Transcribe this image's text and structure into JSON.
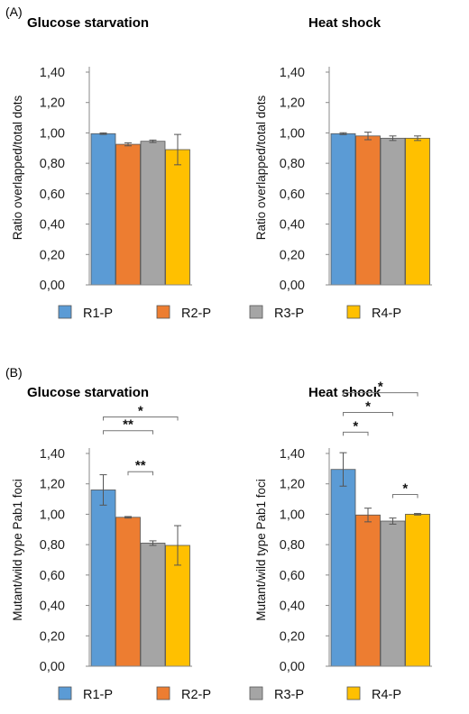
{
  "panel_labels": [
    "(A)",
    "(B)"
  ],
  "legend": {
    "items": [
      {
        "label": "R1-P",
        "color": "#5B9BD5"
      },
      {
        "label": "R2-P",
        "color": "#ED7D31"
      },
      {
        "label": "R3-P",
        "color": "#A5A5A5"
      },
      {
        "label": "R4-P",
        "color": "#FFC000"
      }
    ]
  },
  "colors": {
    "R1-P": "#5B9BD5",
    "R2-P": "#ED7D31",
    "R3-P": "#A5A5A5",
    "R4-P": "#FFC000"
  },
  "chart_data": [
    {
      "type": "bar",
      "panel": "(A)",
      "title": "Glucose starvation",
      "ylabel": "Ratio overlapped/total dots",
      "ylim": [
        0,
        1.4
      ],
      "yticks": [
        "0,00",
        "0,20",
        "0,40",
        "0,60",
        "0,80",
        "1,00",
        "1,20",
        "1,40"
      ],
      "categories": [
        "R1-P",
        "R2-P",
        "R3-P",
        "R4-P"
      ],
      "values": [
        0.995,
        0.925,
        0.945,
        0.89
      ],
      "errors": [
        0.005,
        0.01,
        0.008,
        0.1
      ],
      "significance": []
    },
    {
      "type": "bar",
      "panel": "(A)",
      "title": "Heat shock",
      "ylabel": "Ratio overlapped/total dots",
      "ylim": [
        0,
        1.4
      ],
      "yticks": [
        "0,00",
        "0,20",
        "0,40",
        "0,60",
        "0,80",
        "1,00",
        "1,20",
        "1,40"
      ],
      "categories": [
        "R1-P",
        "R2-P",
        "R3-P",
        "R4-P"
      ],
      "values": [
        0.995,
        0.98,
        0.965,
        0.965
      ],
      "errors": [
        0.006,
        0.025,
        0.015,
        0.015
      ],
      "significance": []
    },
    {
      "type": "bar",
      "panel": "(B)",
      "title": "Glucose starvation",
      "ylabel": "Mutant/wild type Pab1 foci",
      "ylim": [
        0,
        1.4
      ],
      "yticks": [
        "0,00",
        "0,20",
        "0,40",
        "0,60",
        "0,80",
        "1,00",
        "1,20",
        "1,40"
      ],
      "categories": [
        "R1-P",
        "R2-P",
        "R3-P",
        "R4-P"
      ],
      "values": [
        1.16,
        0.98,
        0.81,
        0.795
      ],
      "errors": [
        0.1,
        0.005,
        0.015,
        0.13
      ],
      "significance": [
        {
          "from": 0,
          "to": 3,
          "label": "*",
          "level": 1.64
        },
        {
          "from": 0,
          "to": 2,
          "label": "**",
          "level": 1.55
        },
        {
          "from": 1,
          "to": 2,
          "label": "**",
          "level": 1.28
        }
      ]
    },
    {
      "type": "bar",
      "panel": "(B)",
      "title": "Heat shock",
      "ylabel": "Mutant/wild type Pab1 foci",
      "ylim": [
        0,
        1.4
      ],
      "yticks": [
        "0,00",
        "0,20",
        "0,40",
        "0,60",
        "0,80",
        "1,00",
        "1,20",
        "1,40"
      ],
      "categories": [
        "R1-P",
        "R2-P",
        "R3-P",
        "R4-P"
      ],
      "values": [
        1.295,
        0.995,
        0.955,
        1.0
      ],
      "errors": [
        0.11,
        0.045,
        0.02,
        0.005
      ],
      "significance": [
        {
          "from": 0,
          "to": 3,
          "label": "*",
          "level": 1.8
        },
        {
          "from": 0,
          "to": 2,
          "label": "*",
          "level": 1.67
        },
        {
          "from": 0,
          "to": 1,
          "label": "*",
          "level": 1.54
        },
        {
          "from": 2,
          "to": 3,
          "label": "*",
          "level": 1.13
        }
      ]
    }
  ]
}
